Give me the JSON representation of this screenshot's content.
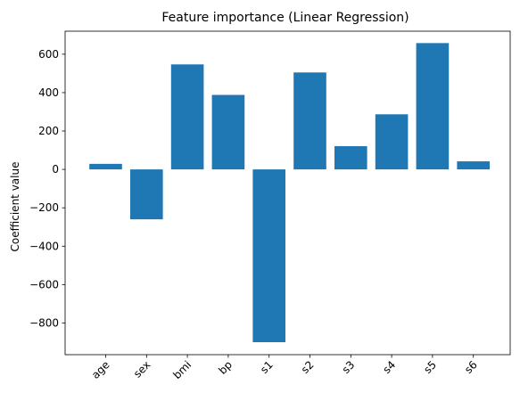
{
  "chart_data": {
    "type": "bar",
    "title": "Feature importance (Linear Regression)",
    "xlabel": "",
    "ylabel": "Coefficient value",
    "categories": [
      "age",
      "sex",
      "bmi",
      "bp",
      "s1",
      "s2",
      "s3",
      "s4",
      "s5",
      "s6"
    ],
    "values": [
      29,
      -260,
      547,
      388,
      -900,
      505,
      121,
      287,
      658,
      42
    ],
    "ylim": [
      -965,
      720
    ],
    "yticks": [
      {
        "value": -800,
        "label": "−800"
      },
      {
        "value": -600,
        "label": "−600"
      },
      {
        "value": -400,
        "label": "−400"
      },
      {
        "value": -200,
        "label": "−200"
      },
      {
        "value": 0,
        "label": "0"
      },
      {
        "value": 200,
        "label": "200"
      },
      {
        "value": 400,
        "label": "400"
      },
      {
        "value": 600,
        "label": "600"
      }
    ],
    "bar_color": "#1f77b4",
    "grid": false,
    "xtick_rotation_deg": 45
  }
}
